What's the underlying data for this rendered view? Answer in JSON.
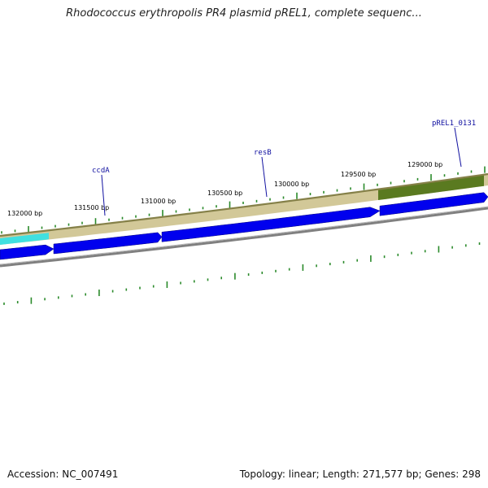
{
  "header": {
    "title": "Rhodococcus erythropolis PR4 plasmid pREL1, complete sequenc..."
  },
  "footer": {
    "accession": "Accession: NC_007491",
    "summary": "Topology: linear; Length: 271,577 bp; Genes: 298"
  },
  "position_labels": [
    "132000 bp",
    "131500 bp",
    "131000 bp",
    "130500 bp",
    "130000 bp",
    "129500 bp",
    "129000 bp"
  ],
  "gene_labels": [
    "ccdA",
    "resB",
    "pREL1_0131"
  ],
  "colors": {
    "tick": "#2a8a2a",
    "gene_forward": "#0000ee",
    "band_outer": "#858048",
    "band_light": "#d2c898",
    "band_dark": "#5a7a20",
    "band_cyan": "#40e0e0",
    "backbone": "#808080",
    "label_line": "#1010a0"
  }
}
